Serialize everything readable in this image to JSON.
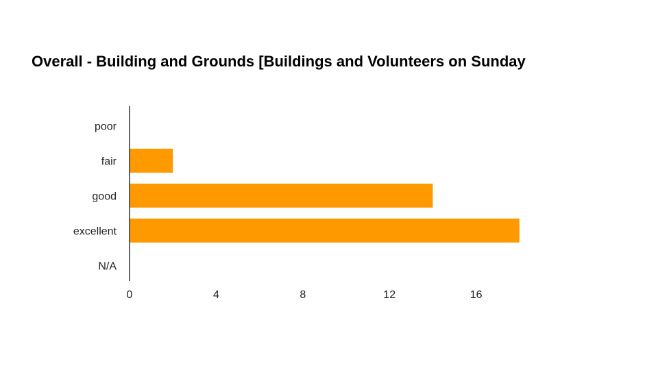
{
  "chart_data": {
    "type": "bar",
    "orientation": "horizontal",
    "title": "Overall - Building and Grounds [Buildings and Volunteers on Sunday",
    "categories": [
      "poor",
      "fair",
      "good",
      "excellent",
      "N/A"
    ],
    "values": [
      0,
      2,
      14,
      18,
      0
    ],
    "xlim": [
      0,
      18
    ],
    "x_ticks": [
      0,
      4,
      8,
      12,
      16
    ],
    "xlabel": "",
    "ylabel": "",
    "grid": false,
    "legend": "none",
    "bar_color": "#ff9900",
    "axis_color": "#333333"
  }
}
